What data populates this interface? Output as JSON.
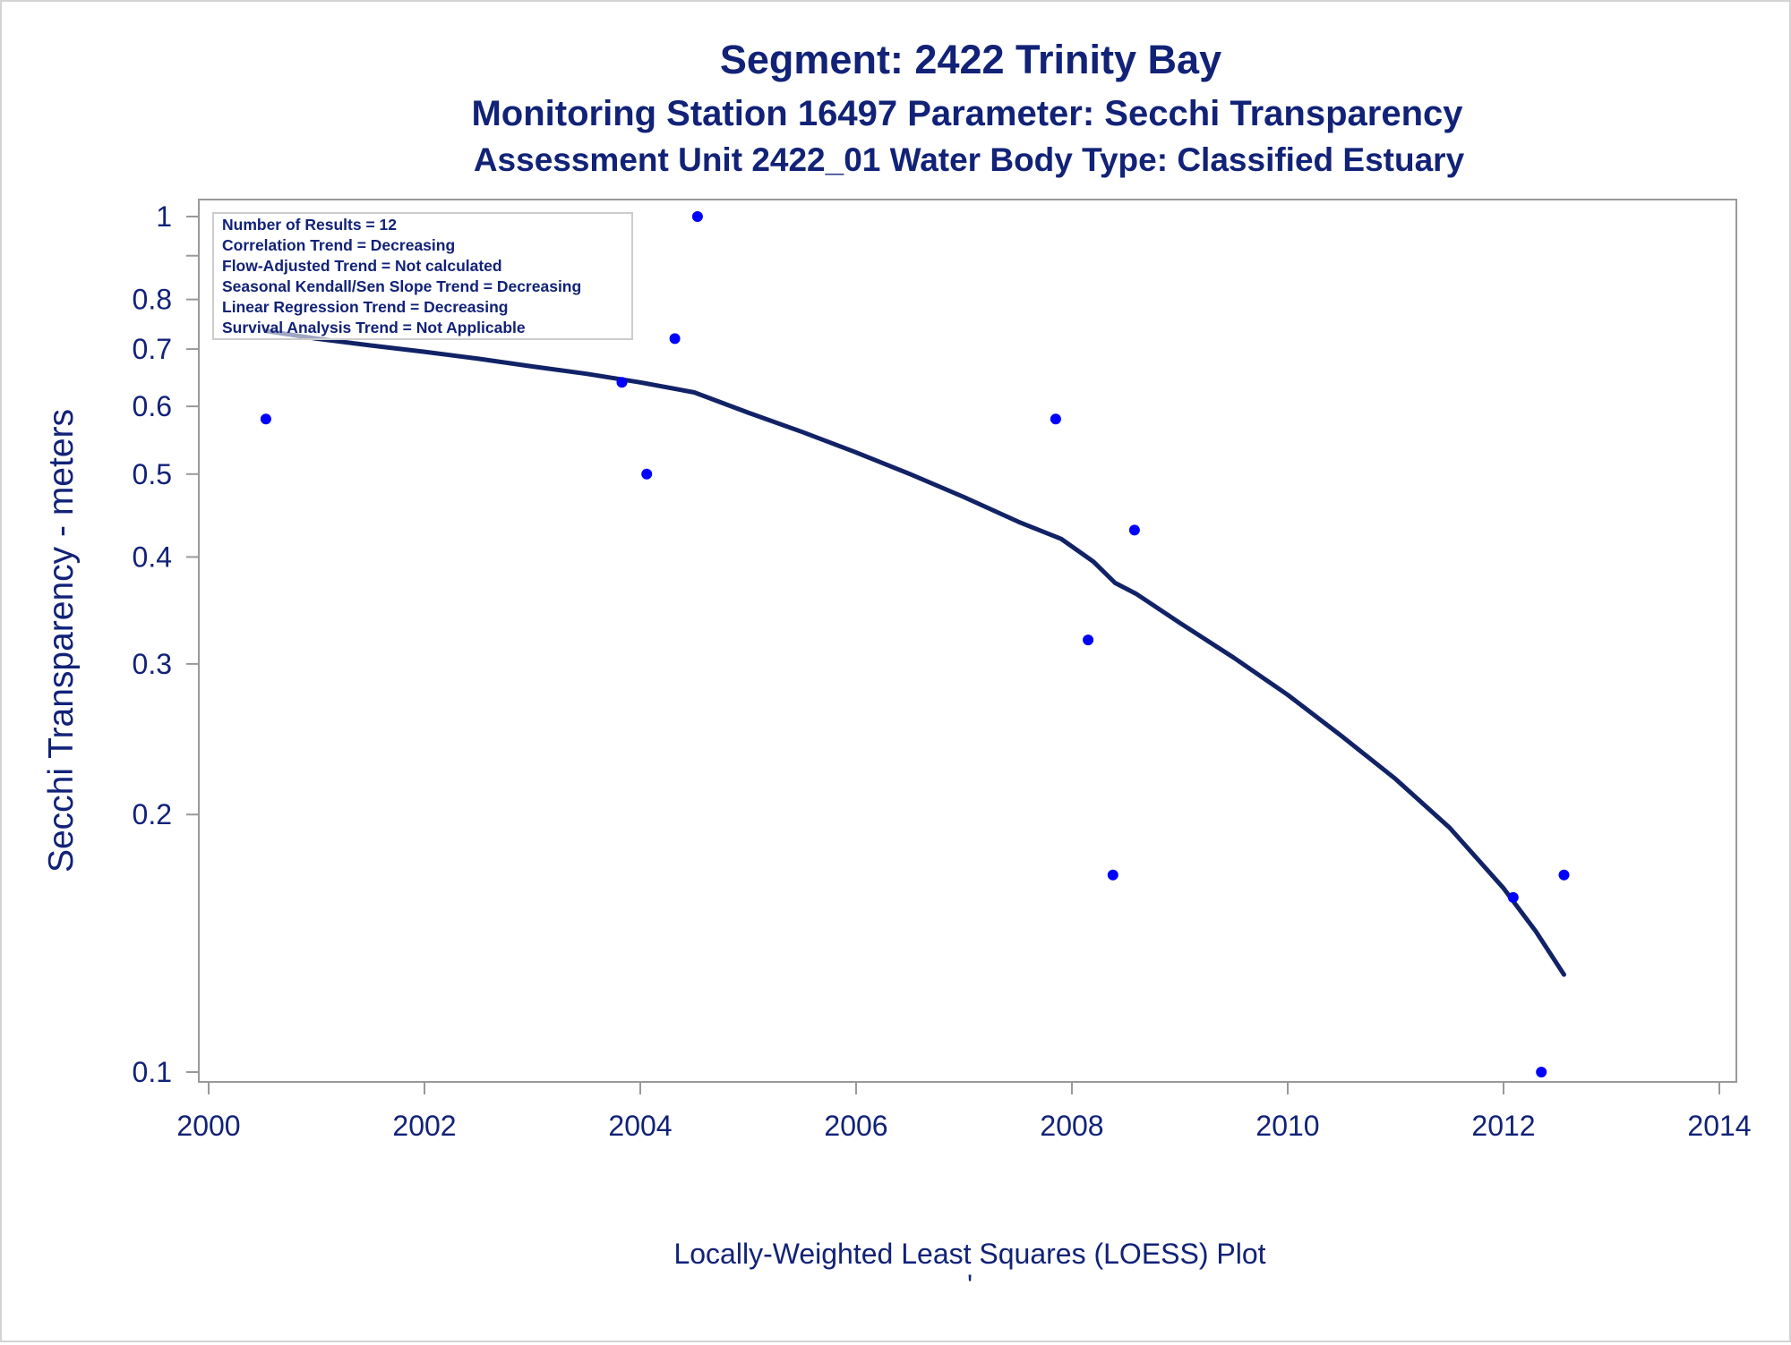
{
  "titles": {
    "line1": "Segment: 2422  Trinity Bay",
    "line2": "Monitoring Station 16497 Parameter: Secchi Transparency",
    "line3": "Assessment Unit 2422_01   Water Body Type: Classified Estuary"
  },
  "footnote": "Locally-Weighted Least Squares (LOESS) Plot",
  "footnote_mark": "'",
  "stats_box": [
    "Number of Results = 12",
    "Correlation Trend = Decreasing",
    "Flow-Adjusted Trend = Not calculated",
    "Seasonal Kendall/Sen Slope Trend = Decreasing",
    "Linear Regression Trend = Decreasing",
    "Survival Analysis Trend = Not Applicable"
  ],
  "colors": {
    "text": "#112277",
    "points": "#0000ff",
    "curve": "#112266",
    "axis": "#999999"
  },
  "chart_data": {
    "type": "scatter",
    "ylabel": "Secchi Transparency - meters",
    "xlabel": "",
    "xlim": [
      2000,
      2014
    ],
    "ylim": [
      0.1,
      1
    ],
    "y_scale": "log",
    "grid": false,
    "x_ticks": [
      2000,
      2002,
      2004,
      2006,
      2008,
      2010,
      2012,
      2014
    ],
    "y_ticks": [
      0.1,
      0.2,
      0.3,
      0.4,
      0.5,
      0.6,
      0.7,
      0.8,
      1
    ],
    "y_minor_ticks": [
      0.9
    ],
    "series": [
      {
        "type": "scatter",
        "x": [
          2000.53,
          2003.83,
          2004.06,
          2004.32,
          2004.53,
          2007.85,
          2008.15,
          2008.38,
          2008.58,
          2012.09,
          2012.35,
          2012.56
        ],
        "y": [
          0.58,
          0.64,
          0.5,
          0.72,
          1.0,
          0.58,
          0.32,
          0.17,
          0.43,
          0.16,
          0.1,
          0.17
        ]
      },
      {
        "type": "line",
        "x": [
          2000.53,
          2001.0,
          2001.5,
          2002.0,
          2002.5,
          2003.0,
          2003.5,
          2004.0,
          2004.5,
          2005.0,
          2005.5,
          2006.0,
          2006.5,
          2007.0,
          2007.5,
          2007.9,
          2008.2,
          2008.4,
          2008.6,
          2009.0,
          2009.5,
          2010.0,
          2010.5,
          2011.0,
          2011.5,
          2012.0,
          2012.3,
          2012.56
        ],
        "y": [
          0.735,
          0.72,
          0.707,
          0.695,
          0.682,
          0.668,
          0.655,
          0.64,
          0.623,
          0.59,
          0.56,
          0.53,
          0.5,
          0.47,
          0.44,
          0.42,
          0.395,
          0.373,
          0.362,
          0.335,
          0.305,
          0.276,
          0.247,
          0.22,
          0.193,
          0.164,
          0.146,
          0.13
        ]
      }
    ]
  }
}
